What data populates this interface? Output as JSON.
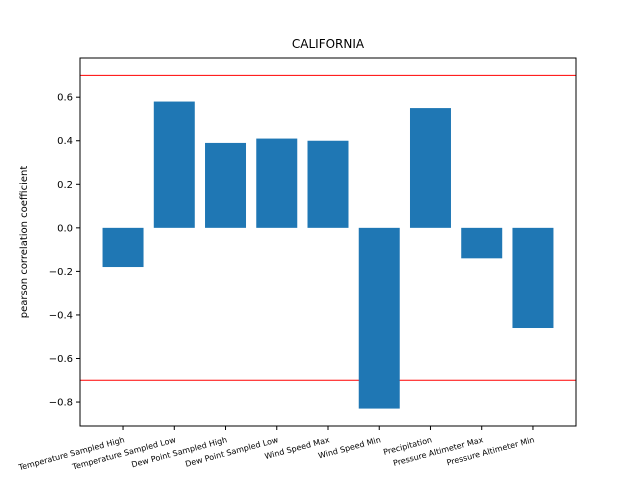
{
  "chart_data": {
    "type": "bar",
    "title": "CALIFORNIA",
    "xlabel": "",
    "ylabel": "pearson correlation coefficient",
    "categories": [
      "Temperature Sampled High",
      "Temperature Sampled Low",
      "Dew Point Sampled High",
      "Dew Point Sampled Low",
      "Wind Speed Max",
      "Wind Speed Min",
      "Precipitation",
      "Pressure Altimeter Max",
      "Pressure Altimeter Min"
    ],
    "values": [
      -0.18,
      0.58,
      0.39,
      0.41,
      0.4,
      -0.83,
      0.55,
      -0.14,
      -0.46
    ],
    "ylim": [
      -0.91,
      0.78
    ],
    "yticks": [
      -0.8,
      -0.6,
      -0.4,
      -0.2,
      0.0,
      0.2,
      0.4,
      0.6
    ],
    "ytick_labels": [
      "−0.8",
      "−0.6",
      "−0.4",
      "−0.2",
      "0.0",
      "0.2",
      "0.4",
      "0.6"
    ],
    "reference_lines": [
      0.7,
      -0.7
    ],
    "bar_color": "#1f77b4",
    "reference_line_color": "#ff0000",
    "grid": false,
    "legend": "none"
  }
}
